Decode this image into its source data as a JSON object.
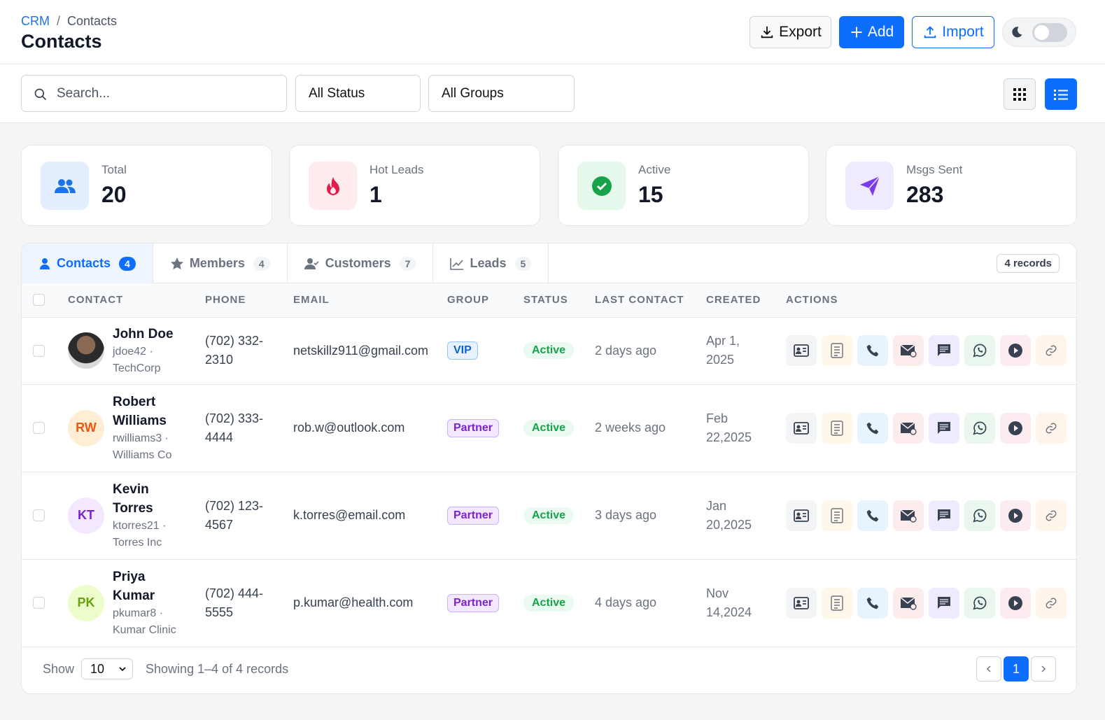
{
  "breadcrumb": {
    "parent": "CRM",
    "separator": "/",
    "current": "Contacts"
  },
  "page_title": "Contacts",
  "buttons": {
    "export": "Export",
    "add": "Add",
    "import": "Import"
  },
  "filters": {
    "search_placeholder": "Search...",
    "status": "All Status",
    "groups": "All Groups"
  },
  "stats": [
    {
      "label": "Total",
      "value": 20
    },
    {
      "label": "Hot Leads",
      "value": 1
    },
    {
      "label": "Active",
      "value": 15
    },
    {
      "label": "Msgs Sent",
      "value": 283
    }
  ],
  "tabs": [
    {
      "label": "Contacts",
      "count": 4
    },
    {
      "label": "Members",
      "count": 4
    },
    {
      "label": "Customers",
      "count": 7
    },
    {
      "label": "Leads",
      "count": 5
    }
  ],
  "records_badge": "4 records",
  "table": {
    "headers": [
      "CONTACT",
      "PHONE",
      "EMAIL",
      "GROUP",
      "STATUS",
      "LAST CONTACT",
      "CREATED",
      "ACTIONS"
    ],
    "rows": [
      {
        "initials": null,
        "name": "John Doe",
        "subtitle": "jdoe42 · TechCorp",
        "phone": "(702) 332-2310",
        "email": "netskillz911@gmail.com",
        "group": "VIP",
        "status": "Active",
        "last_contact": "2 days ago",
        "created": "Apr 1, 2025"
      },
      {
        "initials": "RW",
        "name": "Robert Williams",
        "subtitle": "rwilliams3 · Williams Co",
        "phone": "(702) 333-4444",
        "email": "rob.w@outlook.com",
        "group": "Partner",
        "status": "Active",
        "last_contact": "2 weeks ago",
        "created": "Feb 22,2025"
      },
      {
        "initials": "KT",
        "name": "Kevin Torres",
        "subtitle": "ktorres21 · Torres Inc",
        "phone": "(702) 123-4567",
        "email": "k.torres@email.com",
        "group": "Partner",
        "status": "Active",
        "last_contact": "3 days ago",
        "created": "Jan 20,2025"
      },
      {
        "initials": "PK",
        "name": "Priya Kumar",
        "subtitle": "pkumar8 · Kumar Clinic",
        "phone": "(702) 444-5555",
        "email": "p.kumar@health.com",
        "group": "Partner",
        "status": "Active",
        "last_contact": "4 days ago",
        "created": "Nov 14,2024"
      }
    ]
  },
  "footer": {
    "show_label": "Show",
    "page_size": 10,
    "summary": "Showing 1–4 of 4 records",
    "page": 1
  }
}
